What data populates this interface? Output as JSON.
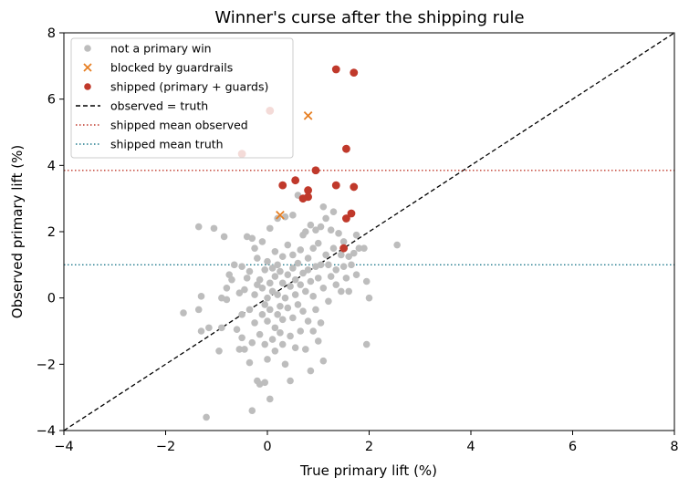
{
  "chart_data": {
    "type": "scatter",
    "title": "Winner's curse after the shipping rule",
    "xlabel": "True primary lift (%)",
    "ylabel": "Observed primary lift (%)",
    "xlim": [
      -4,
      8
    ],
    "ylim": [
      -4,
      8
    ],
    "xticks": [
      -4,
      -2,
      0,
      2,
      4,
      6,
      8
    ],
    "yticks": [
      -4,
      -2,
      0,
      2,
      4,
      6,
      8
    ],
    "xtick_labels": [
      "−4",
      "−2",
      "0",
      "2",
      "4",
      "6",
      "8"
    ],
    "ytick_labels": [
      "−4",
      "−2",
      "0",
      "2",
      "4",
      "6",
      "8"
    ],
    "grid": false,
    "legend_position": "top-left",
    "colors": {
      "not_primary": "#bdbdbd",
      "blocked": "#e67e22",
      "shipped": "#c0392b",
      "identity": "#000000",
      "shipped_mean_observed": "#c0392b",
      "shipped_mean_truth": "#1f7a8c"
    },
    "legend": [
      {
        "label": "not a primary win",
        "marker": "dot",
        "color": "#bdbdbd"
      },
      {
        "label": "blocked by guardrails",
        "marker": "x",
        "color": "#e67e22"
      },
      {
        "label": "shipped (primary + guards)",
        "marker": "dot",
        "color": "#c0392b"
      },
      {
        "label": "observed = truth",
        "marker": "dashed",
        "color": "#000000"
      },
      {
        "label": "shipped mean observed",
        "marker": "dotted",
        "color": "#c0392b"
      },
      {
        "label": "shipped mean truth",
        "marker": "dotted",
        "color": "#1f7a8c"
      }
    ],
    "reference_lines": {
      "identity": [
        [
          -4,
          -4
        ],
        [
          8,
          8
        ]
      ],
      "shipped_mean_observed": 3.85,
      "shipped_mean_truth": 1.0
    },
    "series": [
      {
        "name": "not a primary win",
        "marker": "dot",
        "points": [
          [
            -1.65,
            -0.45
          ],
          [
            -1.35,
            -0.35
          ],
          [
            -1.3,
            0.05
          ],
          [
            -1.3,
            -1.0
          ],
          [
            -1.35,
            2.15
          ],
          [
            -1.2,
            -3.6
          ],
          [
            -1.15,
            -0.9
          ],
          [
            -1.05,
            2.1
          ],
          [
            -0.95,
            -1.6
          ],
          [
            -0.9,
            -0.9
          ],
          [
            -0.9,
            0.0
          ],
          [
            -0.85,
            1.85
          ],
          [
            -0.8,
            -0.05
          ],
          [
            -0.8,
            0.3
          ],
          [
            -0.75,
            0.7
          ],
          [
            -0.7,
            0.55
          ],
          [
            -0.65,
            1.0
          ],
          [
            -0.6,
            -0.95
          ],
          [
            -0.55,
            -1.55
          ],
          [
            -0.55,
            0.15
          ],
          [
            -0.5,
            0.95
          ],
          [
            -0.5,
            -0.5
          ],
          [
            -0.5,
            -1.2
          ],
          [
            -0.45,
            0.25
          ],
          [
            -0.45,
            -1.55
          ],
          [
            -0.4,
            0.6
          ],
          [
            -0.4,
            1.85
          ],
          [
            -0.35,
            -0.35
          ],
          [
            -0.35,
            0.8
          ],
          [
            -0.35,
            -1.95
          ],
          [
            -0.3,
            1.8
          ],
          [
            -0.3,
            -1.35
          ],
          [
            -0.3,
            -3.4
          ],
          [
            -0.25,
            0.1
          ],
          [
            -0.25,
            1.5
          ],
          [
            -0.25,
            -0.75
          ],
          [
            -0.2,
            0.4
          ],
          [
            -0.2,
            -2.5
          ],
          [
            -0.2,
            1.2
          ],
          [
            -0.15,
            0.55
          ],
          [
            -0.15,
            -1.1
          ],
          [
            -0.15,
            -2.6
          ],
          [
            -0.1,
            -0.5
          ],
          [
            -0.1,
            0.3
          ],
          [
            -0.1,
            1.7
          ],
          [
            -0.05,
            -1.4
          ],
          [
            -0.05,
            -0.2
          ],
          [
            -0.05,
            0.85
          ],
          [
            -0.05,
            -2.55
          ],
          [
            0.0,
            0.0
          ],
          [
            0.0,
            -0.7
          ],
          [
            0.0,
            1.1
          ],
          [
            0.0,
            -1.85
          ],
          [
            0.05,
            0.45
          ],
          [
            0.05,
            -3.05
          ],
          [
            0.05,
            -0.35
          ],
          [
            0.05,
            2.1
          ],
          [
            0.1,
            0.9
          ],
          [
            0.1,
            -1.25
          ],
          [
            0.1,
            0.2
          ],
          [
            0.15,
            -0.9
          ],
          [
            0.15,
            0.65
          ],
          [
            0.15,
            1.4
          ],
          [
            0.15,
            -1.6
          ],
          [
            0.2,
            0.1
          ],
          [
            0.2,
            -0.5
          ],
          [
            0.2,
            2.4
          ],
          [
            0.2,
            1.0
          ],
          [
            0.25,
            -0.25
          ],
          [
            0.25,
            -1.05
          ],
          [
            0.25,
            0.8
          ],
          [
            0.3,
            0.45
          ],
          [
            0.3,
            -1.4
          ],
          [
            0.3,
            1.25
          ],
          [
            0.3,
            -0.65
          ],
          [
            0.35,
            0.0
          ],
          [
            0.35,
            2.45
          ],
          [
            0.35,
            -2.0
          ],
          [
            0.4,
            0.7
          ],
          [
            0.4,
            -0.3
          ],
          [
            0.4,
            1.6
          ],
          [
            0.45,
            -1.15
          ],
          [
            0.45,
            0.35
          ],
          [
            0.45,
            -2.5
          ],
          [
            0.5,
            0.9
          ],
          [
            0.5,
            -0.6
          ],
          [
            0.5,
            1.3
          ],
          [
            0.5,
            2.5
          ],
          [
            0.55,
            0.1
          ],
          [
            0.55,
            -1.5
          ],
          [
            0.55,
            0.55
          ],
          [
            0.6,
            3.1
          ],
          [
            0.6,
            -0.2
          ],
          [
            0.6,
            1.05
          ],
          [
            0.65,
            1.45
          ],
          [
            0.65,
            -1.0
          ],
          [
            0.65,
            0.4
          ],
          [
            0.7,
            -0.4
          ],
          [
            0.7,
            0.75
          ],
          [
            0.7,
            1.9
          ],
          [
            0.75,
            2.0
          ],
          [
            0.75,
            -1.55
          ],
          [
            0.75,
            0.2
          ],
          [
            0.8,
            0.85
          ],
          [
            0.8,
            -0.7
          ],
          [
            0.8,
            1.2
          ],
          [
            0.85,
            -2.2
          ],
          [
            0.85,
            0.5
          ],
          [
            0.85,
            2.2
          ],
          [
            0.9,
            1.5
          ],
          [
            0.9,
            -1.0
          ],
          [
            0.9,
            0.05
          ],
          [
            0.95,
            0.95
          ],
          [
            0.95,
            -0.35
          ],
          [
            0.95,
            2.05
          ],
          [
            1.0,
            0.6
          ],
          [
            1.0,
            -1.3
          ],
          [
            1.0,
            1.65
          ],
          [
            1.05,
            2.15
          ],
          [
            1.05,
            -0.75
          ],
          [
            1.05,
            1.0
          ],
          [
            1.1,
            2.75
          ],
          [
            1.1,
            0.3
          ],
          [
            1.1,
            -1.9
          ],
          [
            1.15,
            1.3
          ],
          [
            1.15,
            2.4
          ],
          [
            1.2,
            -0.1
          ],
          [
            1.2,
            1.0
          ],
          [
            1.25,
            2.05
          ],
          [
            1.25,
            0.65
          ],
          [
            1.3,
            1.5
          ],
          [
            1.3,
            2.6
          ],
          [
            1.35,
            0.85
          ],
          [
            1.35,
            0.4
          ],
          [
            1.4,
            1.95
          ],
          [
            1.45,
            0.2
          ],
          [
            1.45,
            1.3
          ],
          [
            1.5,
            0.95
          ],
          [
            1.5,
            1.7
          ],
          [
            1.55,
            0.6
          ],
          [
            1.6,
            1.25
          ],
          [
            1.6,
            0.2
          ],
          [
            1.65,
            1.0
          ],
          [
            1.7,
            1.35
          ],
          [
            1.75,
            1.9
          ],
          [
            1.75,
            0.7
          ],
          [
            1.8,
            1.5
          ],
          [
            1.9,
            1.5
          ],
          [
            1.95,
            0.5
          ],
          [
            1.95,
            -1.4
          ],
          [
            2.0,
            0.0
          ],
          [
            2.55,
            1.6
          ]
        ]
      },
      {
        "name": "blocked by guardrails",
        "marker": "x",
        "points": [
          [
            0.8,
            5.5
          ],
          [
            0.25,
            2.5
          ]
        ]
      },
      {
        "name": "shipped (primary + guards)",
        "marker": "dot",
        "points": [
          [
            1.35,
            6.9
          ],
          [
            1.7,
            6.8
          ],
          [
            0.05,
            5.65
          ],
          [
            -0.5,
            4.35
          ],
          [
            1.55,
            4.5
          ],
          [
            0.95,
            3.85
          ],
          [
            0.55,
            3.55
          ],
          [
            0.3,
            3.4
          ],
          [
            0.8,
            3.25
          ],
          [
            1.35,
            3.4
          ],
          [
            1.7,
            3.35
          ],
          [
            0.8,
            3.05
          ],
          [
            0.7,
            3.0
          ],
          [
            1.55,
            2.4
          ],
          [
            1.65,
            2.55
          ],
          [
            1.5,
            1.5
          ]
        ]
      }
    ]
  }
}
